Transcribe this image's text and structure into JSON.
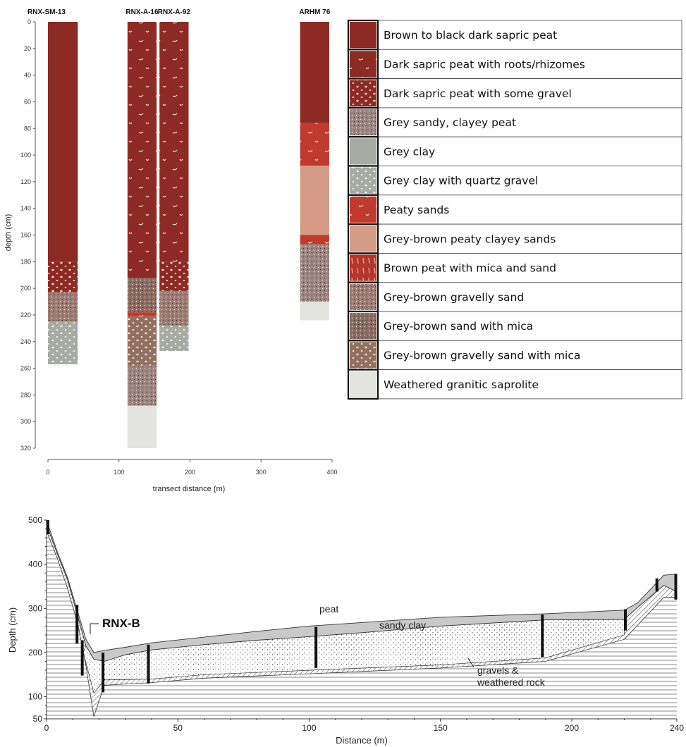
{
  "chart_data": [
    {
      "type": "stratigraphic-columns",
      "xlabel": "transect distance (m)",
      "ylabel": "depth (cm)",
      "xlim": [
        0,
        400
      ],
      "ylim": [
        0,
        320
      ],
      "x_ticks": [
        0,
        100,
        200,
        300,
        400
      ],
      "y_ticks": [
        0,
        20,
        40,
        60,
        80,
        100,
        120,
        140,
        160,
        180,
        200,
        220,
        240,
        260,
        280,
        300,
        320
      ],
      "cores": [
        {
          "name": "RNX-SM-13",
          "x_start": 0,
          "x_end": 42,
          "layers": [
            {
              "from": 0,
              "to": 180,
              "unit": 0
            },
            {
              "from": 180,
              "to": 203,
              "unit": 2
            },
            {
              "from": 203,
              "to": 225,
              "unit": 9
            },
            {
              "from": 225,
              "to": 238,
              "unit": 5
            },
            {
              "from": 238,
              "to": 248,
              "unit": 5
            },
            {
              "from": 248,
              "to": 257,
              "unit": 5
            }
          ]
        },
        {
          "name": "RNX-A-16",
          "x_start": 112,
          "x_end": 153,
          "layers": [
            {
              "from": 0,
              "to": 192,
              "unit": 1
            },
            {
              "from": 192,
              "to": 218,
              "unit": 10
            },
            {
              "from": 218,
              "to": 221,
              "unit": 6
            },
            {
              "from": 221,
              "to": 258,
              "unit": 11
            },
            {
              "from": 258,
              "to": 288,
              "unit": 3
            },
            {
              "from": 288,
              "to": 320,
              "unit": 12
            }
          ]
        },
        {
          "name": "RNX-A-92",
          "x_start": 157,
          "x_end": 198,
          "layers": [
            {
              "from": 0,
              "to": 180,
              "unit": 1
            },
            {
              "from": 180,
              "to": 202,
              "unit": 2
            },
            {
              "from": 202,
              "to": 228,
              "unit": 9
            },
            {
              "from": 228,
              "to": 247,
              "unit": 5
            }
          ]
        },
        {
          "name": "ARHM 76",
          "x_start": 355,
          "x_end": 396,
          "layers": [
            {
              "from": 0,
              "to": 76,
              "unit": 0
            },
            {
              "from": 76,
              "to": 108,
              "unit": 6
            },
            {
              "from": 108,
              "to": 160,
              "unit": 7
            },
            {
              "from": 160,
              "to": 167,
              "unit": 6
            },
            {
              "from": 167,
              "to": 210,
              "unit": 3
            },
            {
              "from": 210,
              "to": 224,
              "unit": 12
            }
          ]
        }
      ],
      "legend": [
        {
          "label": "Brown to black dark sapric peat",
          "color": "#8c2a23",
          "pattern": "none"
        },
        {
          "label": "Dark sapric peat with roots/rhizomes",
          "color": "#8c2a23",
          "pattern": "roots"
        },
        {
          "label": "Dark sapric peat with some gravel",
          "color": "#8c2a23",
          "pattern": "gravel"
        },
        {
          "label": "Grey sandy, clayey peat",
          "color": "#9a8580",
          "pattern": "dots"
        },
        {
          "label": "Grey clay",
          "color": "#a7aba4",
          "pattern": "none"
        },
        {
          "label": "Grey clay with quartz gravel",
          "color": "#a7aba4",
          "pattern": "gravel"
        },
        {
          "label": "Peaty sands",
          "color": "#c03a30",
          "pattern": "roots"
        },
        {
          "label": "Grey-brown peaty clayey sands",
          "color": "#d49c86",
          "pattern": "none"
        },
        {
          "label": "Brown peat with mica and sand",
          "color": "#b2362c",
          "pattern": "streaks"
        },
        {
          "label": "Grey-brown gravelly sand",
          "color": "#9a7c72",
          "pattern": "dots"
        },
        {
          "label": "Grey-brown sand with mica",
          "color": "#8a6c62",
          "pattern": "dots"
        },
        {
          "label": "Grey-brown gravelly sand with mica",
          "color": "#93705f",
          "pattern": "gravel"
        },
        {
          "label": "Weathered granitic saprolite",
          "color": "#e3e3df",
          "pattern": "none"
        }
      ]
    },
    {
      "type": "cross-section",
      "xlabel": "Distance (m)",
      "ylabel": "Depth (cm)",
      "xlim": [
        0,
        240
      ],
      "ylim": [
        50,
        500
      ],
      "x_ticks": [
        0,
        50,
        100,
        150,
        200,
        240
      ],
      "y_ticks": [
        50,
        100,
        200,
        300,
        400,
        500
      ],
      "surface": [
        [
          0,
          500
        ],
        [
          4,
          430
        ],
        [
          8,
          370
        ],
        [
          12,
          290
        ],
        [
          15,
          230
        ],
        [
          18,
          200
        ],
        [
          22,
          205
        ],
        [
          30,
          212
        ],
        [
          40,
          222
        ],
        [
          60,
          235
        ],
        [
          80,
          248
        ],
        [
          100,
          260
        ],
        [
          120,
          268
        ],
        [
          150,
          280
        ],
        [
          190,
          288
        ],
        [
          220,
          296
        ],
        [
          225,
          312
        ],
        [
          235,
          375
        ],
        [
          240,
          378
        ]
      ],
      "peat_base": [
        [
          0,
          490
        ],
        [
          4,
          425
        ],
        [
          8,
          365
        ],
        [
          12,
          280
        ],
        [
          15,
          215
        ],
        [
          18,
          185
        ],
        [
          22,
          180
        ],
        [
          30,
          195
        ],
        [
          40,
          206
        ],
        [
          60,
          218
        ],
        [
          80,
          228
        ],
        [
          100,
          236
        ],
        [
          120,
          245
        ],
        [
          150,
          260
        ],
        [
          190,
          274
        ],
        [
          220,
          275
        ],
        [
          225,
          302
        ],
        [
          235,
          352
        ],
        [
          240,
          338
        ]
      ],
      "sandy_clay_base": [
        [
          14,
          200
        ],
        [
          18,
          108
        ],
        [
          22,
          138
        ],
        [
          40,
          140
        ],
        [
          60,
          150
        ],
        [
          100,
          160
        ],
        [
          150,
          172
        ],
        [
          190,
          188
        ],
        [
          220,
          240
        ]
      ],
      "gravel_base": [
        [
          0,
          475
        ],
        [
          4,
          415
        ],
        [
          8,
          345
        ],
        [
          12,
          262
        ],
        [
          15,
          170
        ],
        [
          18,
          55
        ],
        [
          22,
          126
        ],
        [
          40,
          132
        ],
        [
          60,
          142
        ],
        [
          100,
          152
        ],
        [
          150,
          165
        ],
        [
          190,
          180
        ],
        [
          220,
          230
        ],
        [
          235,
          325
        ],
        [
          240,
          325
        ]
      ],
      "cores": [
        {
          "x": 0.5,
          "top": 500,
          "bottom": 468
        },
        {
          "x": 11.6,
          "top": 308,
          "bottom": 220
        },
        {
          "x": 13.6,
          "top": 228,
          "bottom": 148
        },
        {
          "x": 21.5,
          "top": 200,
          "bottom": 110
        },
        {
          "x": 38.8,
          "top": 218,
          "bottom": 130
        },
        {
          "x": 102.6,
          "top": 258,
          "bottom": 165
        },
        {
          "x": 188.8,
          "top": 286,
          "bottom": 190
        },
        {
          "x": 220.4,
          "top": 298,
          "bottom": 250
        },
        {
          "x": 232.4,
          "top": 368,
          "bottom": 338
        },
        {
          "x": 239.6,
          "top": 378,
          "bottom": 320
        }
      ],
      "labels": {
        "core": "RNX-B",
        "peat": "peat",
        "sandy_clay": "sandy clay",
        "gravels_line1": "gravels &",
        "gravels_line2": "weathered rock"
      }
    }
  ]
}
